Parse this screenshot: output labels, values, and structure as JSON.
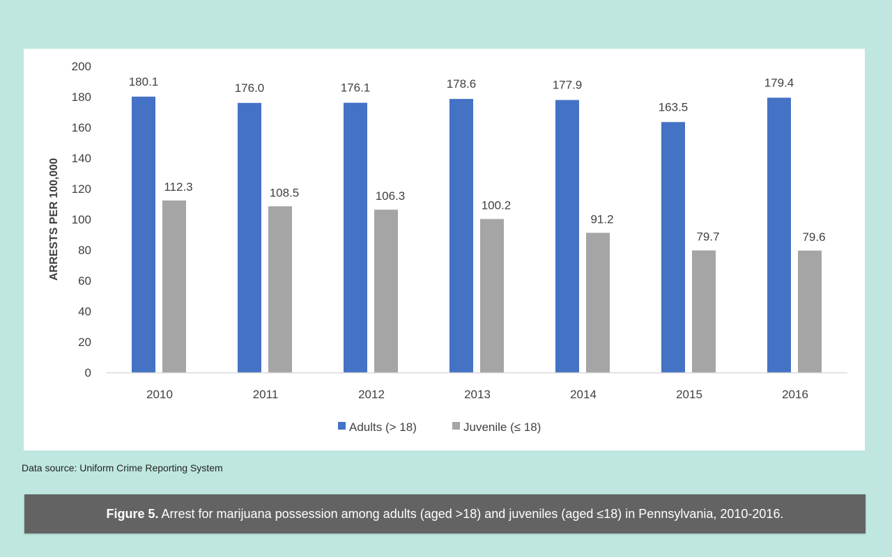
{
  "chart_data": {
    "type": "bar",
    "categories": [
      "2010",
      "2011",
      "2012",
      "2013",
      "2014",
      "2015",
      "2016"
    ],
    "series": [
      {
        "name": "Adults (> 18)",
        "values": [
          180.1,
          176.0,
          176.1,
          178.6,
          177.9,
          163.5,
          179.4
        ],
        "labels": [
          "180.1",
          "176.0",
          "176.1",
          "178.6",
          "177.9",
          "163.5",
          "179.4"
        ],
        "color": "#4472c4"
      },
      {
        "name": "Juvenile (≤ 18)",
        "values": [
          112.3,
          108.5,
          106.3,
          100.2,
          91.2,
          79.7,
          79.6
        ],
        "labels": [
          "112.3",
          "108.5",
          "106.3",
          "100.2",
          "91.2",
          "79.7",
          "79.6"
        ],
        "color": "#a5a5a5"
      }
    ],
    "ylabel": "ARRESTS PER 100,000",
    "ylim": [
      0,
      200
    ],
    "yticks": [
      "0",
      "20",
      "40",
      "60",
      "80",
      "100",
      "120",
      "140",
      "160",
      "180",
      "200"
    ],
    "grid": false,
    "legend": "bottom"
  },
  "source": "Data source: Uniform Crime Reporting System",
  "caption": {
    "label": "Figure 5.",
    "text": " Arrest for marijuana possession among adults (aged >18) and juveniles (aged ≤18) in Pennsylvania, 2010-2016."
  }
}
